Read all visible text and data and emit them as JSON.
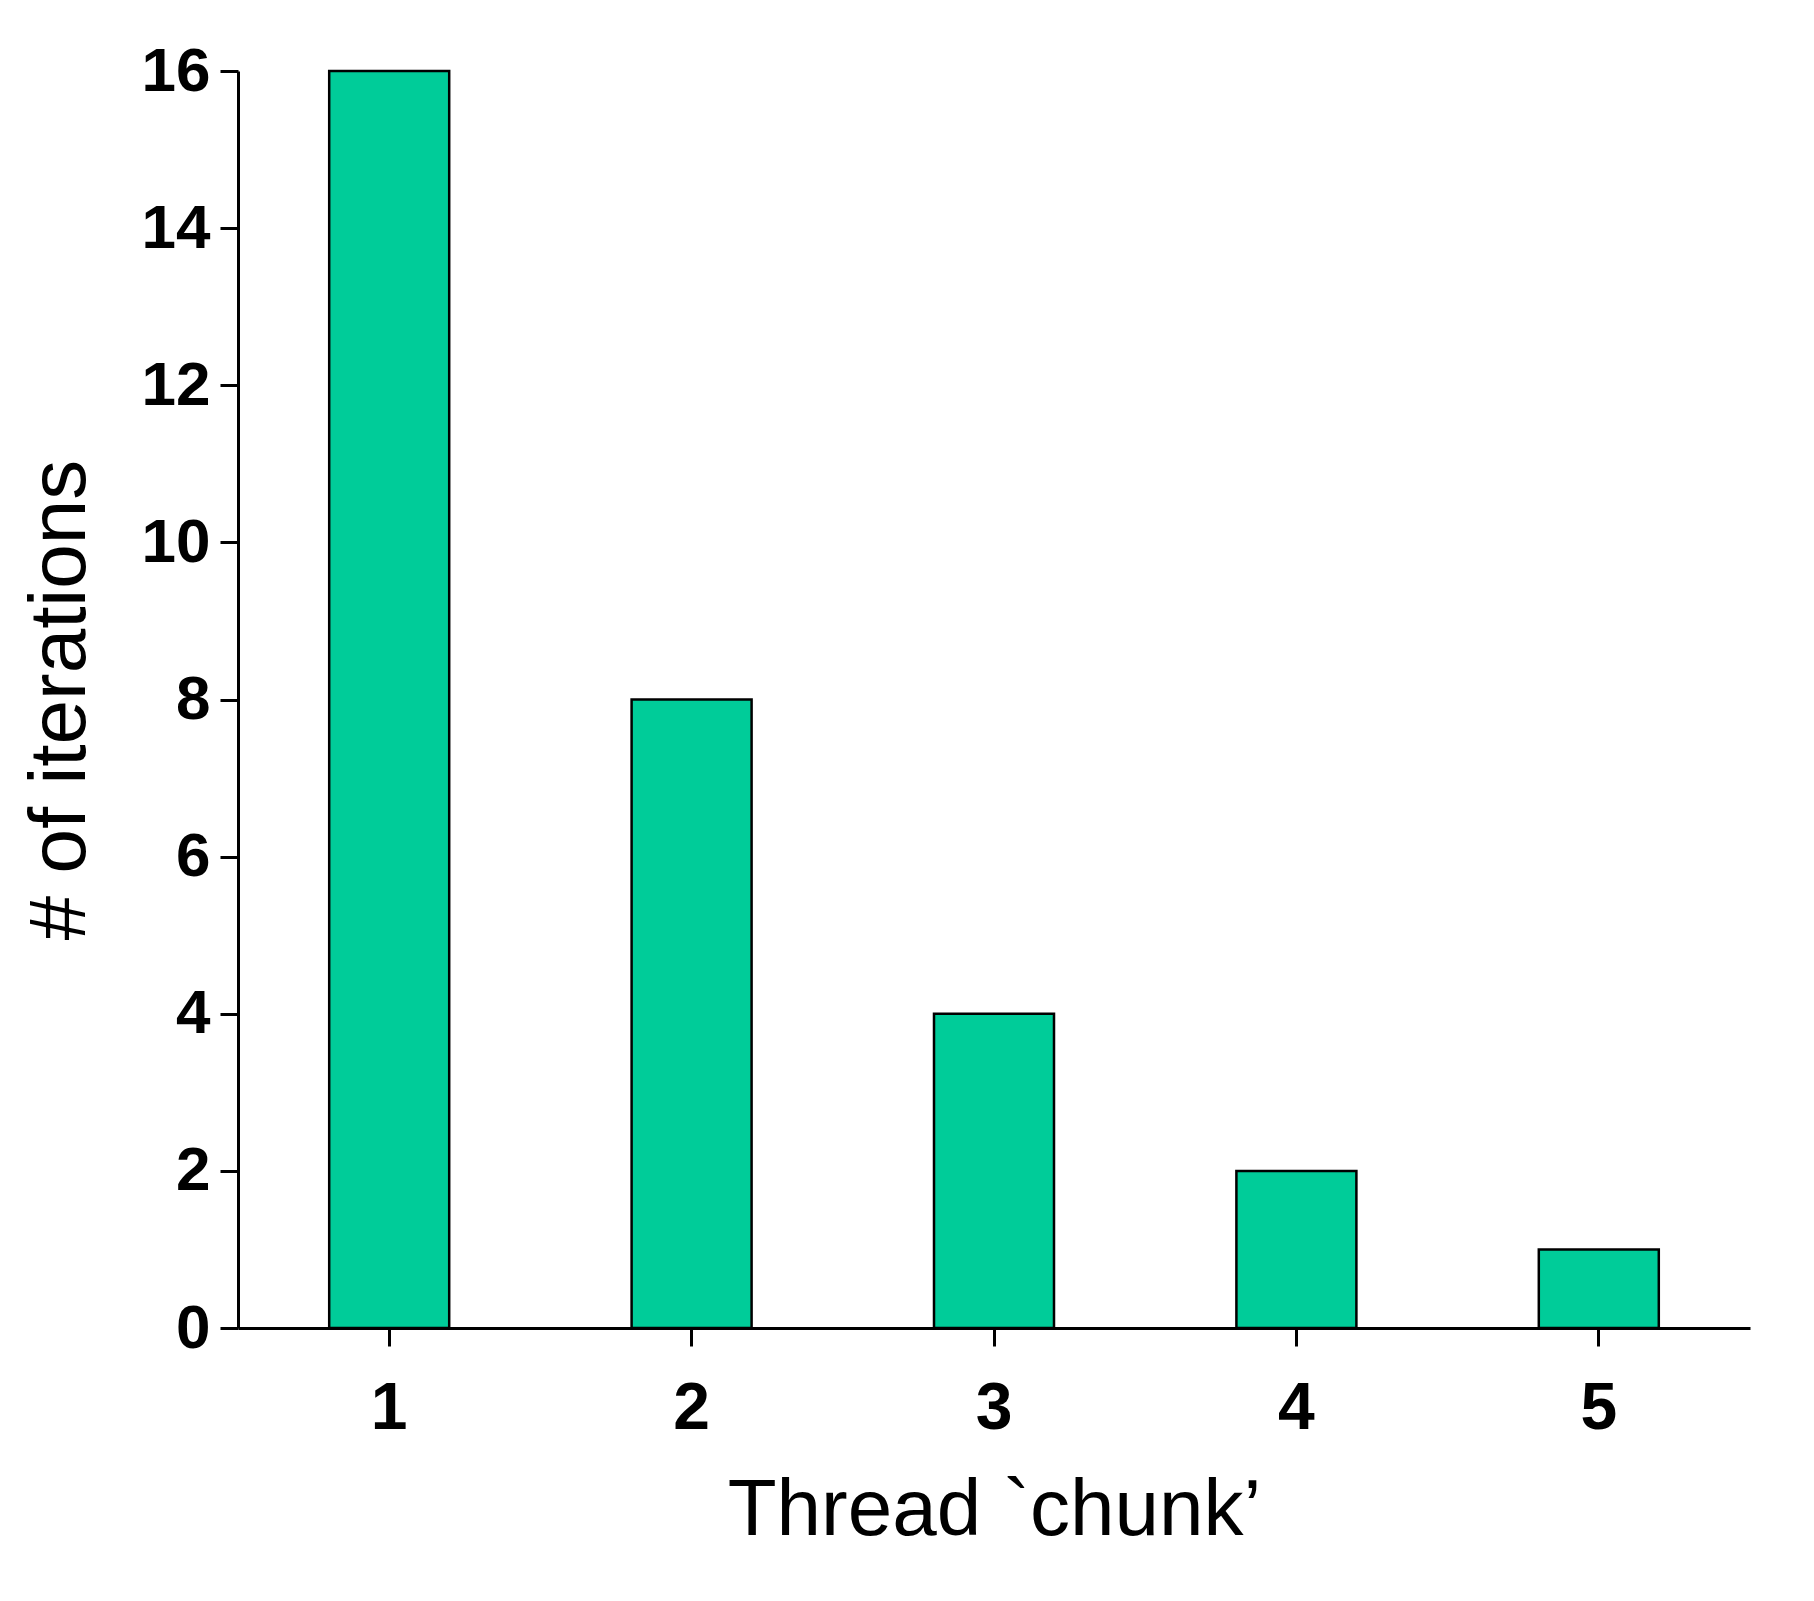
{
  "chart_data": {
    "type": "bar",
    "xlabel": "Thread `chunk’",
    "ylabel": "# of iterations",
    "categories": [
      "1",
      "2",
      "3",
      "4",
      "5"
    ],
    "values": [
      16,
      8,
      4,
      2,
      1
    ],
    "color": "#00cc99",
    "ylim": [
      0,
      16
    ],
    "yticks": [
      0,
      2,
      4,
      6,
      8,
      10,
      12,
      14,
      16
    ],
    "grid": false
  }
}
